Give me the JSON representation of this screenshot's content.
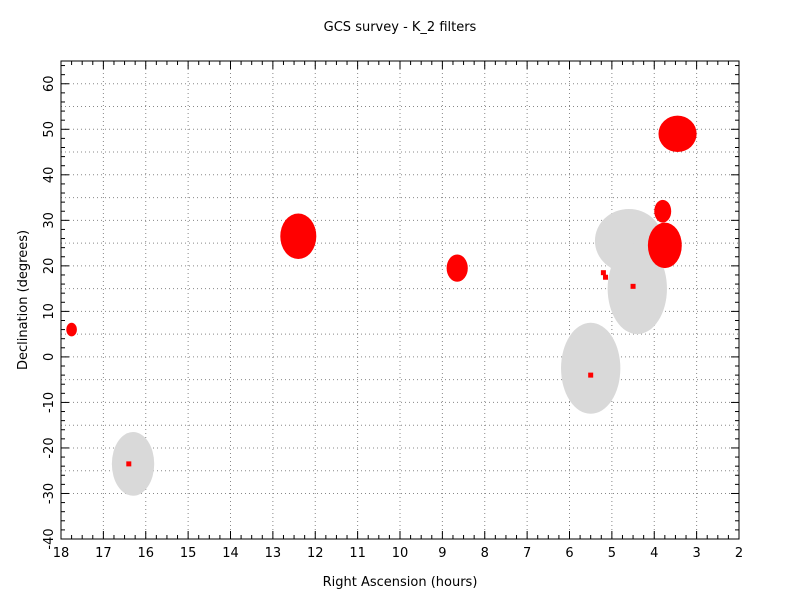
{
  "chart_data": {
    "type": "scatter",
    "title": "GCS survey - K_2  filters",
    "xlabel": "Right Ascension (hours)",
    "ylabel": "Declination (degrees)",
    "xlim": [
      18,
      2
    ],
    "ylim": [
      -40,
      65
    ],
    "x_ticks": [
      18,
      17,
      16,
      15,
      14,
      13,
      12,
      11,
      10,
      9,
      8,
      7,
      6,
      5,
      4,
      3,
      2
    ],
    "y_ticks": [
      -40,
      -30,
      -20,
      -10,
      0,
      10,
      20,
      30,
      40,
      50,
      60
    ],
    "grid": true,
    "colors": {
      "survey": "#ff0000",
      "region": "#d9d9d9",
      "grid": "#888888"
    },
    "regions": [
      {
        "ra": 16.3,
        "dec": -23.5,
        "w_hours": 1.0,
        "h_deg": 14
      },
      {
        "ra": 5.5,
        "dec": -2.5,
        "w_hours": 1.4,
        "h_deg": 20
      },
      {
        "ra": 4.6,
        "dec": 25.5,
        "w_hours": 1.6,
        "h_deg": 14
      },
      {
        "ra": 4.4,
        "dec": 15.0,
        "w_hours": 1.4,
        "h_deg": 20
      }
    ],
    "survey_fields": [
      {
        "ra": 17.75,
        "dec": 6.0,
        "w_hours": 0.25,
        "h_deg": 3
      },
      {
        "ra": 12.4,
        "dec": 26.5,
        "w_hours": 0.85,
        "h_deg": 10
      },
      {
        "ra": 8.65,
        "dec": 19.5,
        "w_hours": 0.5,
        "h_deg": 6
      },
      {
        "ra": 3.45,
        "dec": 49.0,
        "w_hours": 0.9,
        "h_deg": 8
      },
      {
        "ra": 3.8,
        "dec": 32.0,
        "w_hours": 0.4,
        "h_deg": 5
      },
      {
        "ra": 3.75,
        "dec": 24.5,
        "w_hours": 0.8,
        "h_deg": 10
      }
    ],
    "small_points": [
      {
        "ra": 16.4,
        "dec": -23.5
      },
      {
        "ra": 5.5,
        "dec": -4.0
      },
      {
        "ra": 4.5,
        "dec": 15.5
      },
      {
        "ra": 5.15,
        "dec": 17.5
      },
      {
        "ra": 5.2,
        "dec": 18.5
      }
    ]
  }
}
